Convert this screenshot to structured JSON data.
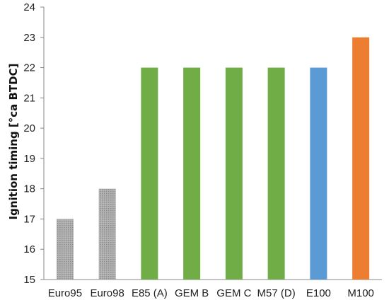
{
  "chart_data": {
    "type": "bar",
    "ylabel": "Ignition timing [°ca BTDC]",
    "xlabel": "",
    "title": "",
    "categories": [
      "Euro95",
      "Euro98",
      "E85 (A)",
      "GEM B",
      "GEM C",
      "M57 (D)",
      "E100",
      "M100"
    ],
    "values": [
      17,
      18,
      22,
      22,
      22,
      22,
      22,
      23
    ],
    "bar_colors": [
      "#a6a6a6",
      "#a6a6a6",
      "#70ad47",
      "#70ad47",
      "#70ad47",
      "#70ad47",
      "#5b9bd5",
      "#ed7d31"
    ],
    "bar_patterns": [
      "dotted",
      "dotted",
      "solid",
      "solid",
      "solid",
      "solid",
      "solid",
      "solid"
    ],
    "ylim": [
      15,
      24
    ],
    "yticks": [
      15,
      16,
      17,
      18,
      19,
      20,
      21,
      22,
      23,
      24
    ],
    "grid": false,
    "legend": "none"
  }
}
